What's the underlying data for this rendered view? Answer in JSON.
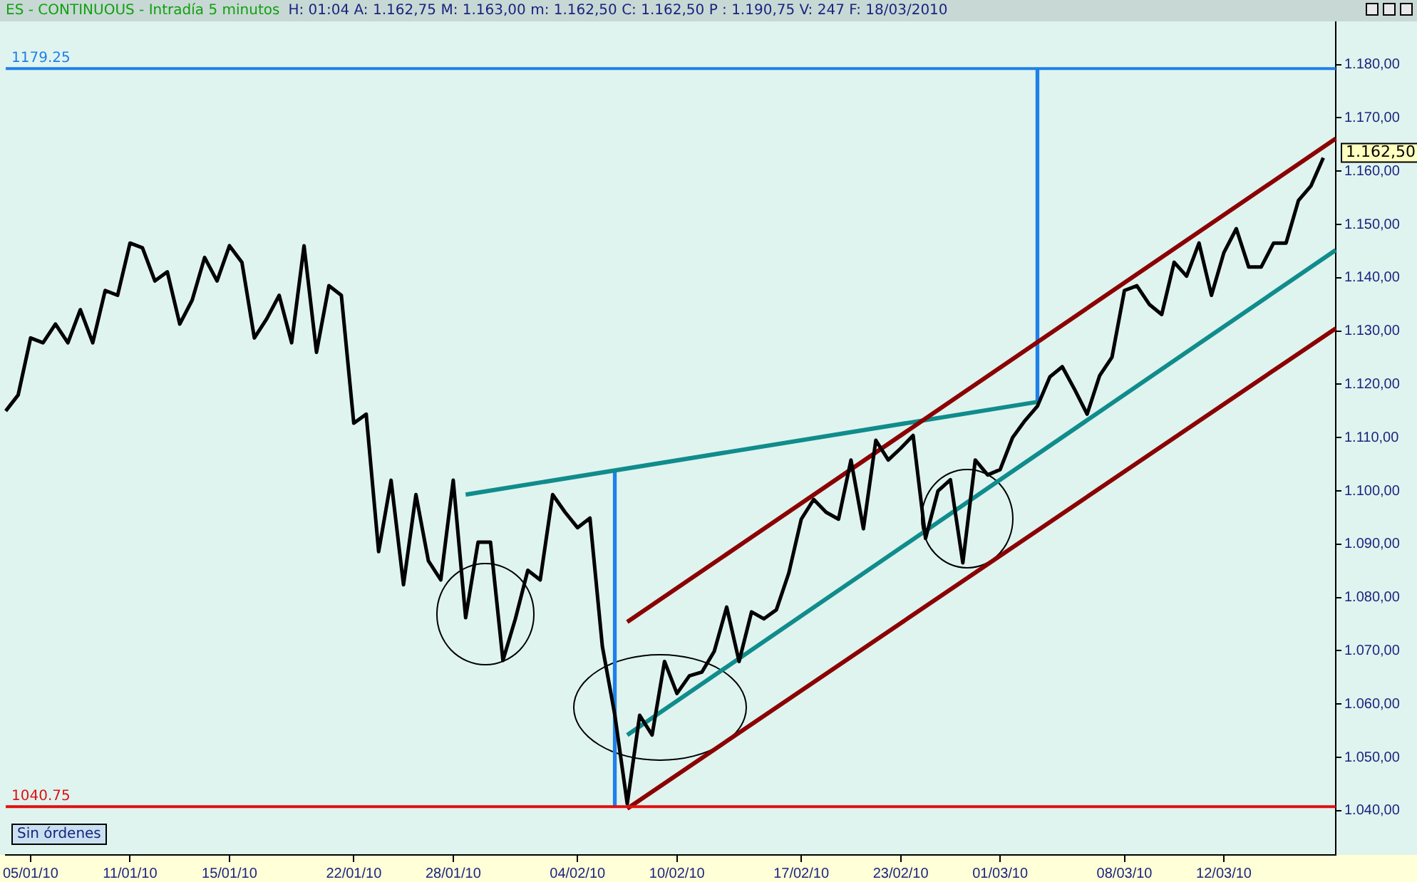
{
  "chart_data": {
    "type": "line",
    "title": "ES - CONTINUOUS - Intradía 5 minutos",
    "subtitle": "H: 01:04  A: 1.162,75  M: 1.163,00  m: 1.162,50  C: 1.162,50  P : 1.190,75  V: 247  F: 18/03/2010",
    "categories": [
      null,
      null,
      "05/01/10",
      null,
      null,
      null,
      null,
      null,
      null,
      null,
      "11/01/10",
      null,
      null,
      null,
      null,
      null,
      null,
      null,
      "15/01/10",
      null,
      null,
      null,
      null,
      null,
      null,
      null,
      null,
      null,
      "22/01/10",
      null,
      null,
      null,
      null,
      null,
      null,
      null,
      "28/01/10",
      null,
      null,
      null,
      null,
      null,
      null,
      null,
      null,
      null,
      "04/02/10",
      null,
      null,
      null,
      null,
      null,
      null,
      null,
      "10/02/10",
      null,
      null,
      null,
      null,
      null,
      null,
      null,
      null,
      null,
      "17/02/10",
      null,
      null,
      null,
      null,
      null,
      null,
      null,
      "23/02/10",
      null,
      null,
      null,
      null,
      null,
      null,
      null,
      "01/03/10",
      null,
      null,
      null,
      null,
      null,
      null,
      null,
      null,
      null,
      "08/03/10",
      null,
      null,
      null,
      null,
      null,
      null,
      null,
      "12/03/10",
      null,
      null,
      null,
      null,
      null,
      null,
      null,
      null,
      null
    ],
    "ylim": [
      1031.7,
      1188.1
    ],
    "yticks": [
      {
        "value": 1040,
        "label": "1.040,00"
      },
      {
        "value": 1050,
        "label": "1.050,00"
      },
      {
        "value": 1060,
        "label": "1.060,00"
      },
      {
        "value": 1070,
        "label": "1.070,00"
      },
      {
        "value": 1080,
        "label": "1.080,00"
      },
      {
        "value": 1090,
        "label": "1.090,00"
      },
      {
        "value": 1100,
        "label": "1.100,00"
      },
      {
        "value": 1110,
        "label": "1.110,00"
      },
      {
        "value": 1120,
        "label": "1.120,00"
      },
      {
        "value": 1130,
        "label": "1.130,00"
      },
      {
        "value": 1140,
        "label": "1.140,00"
      },
      {
        "value": 1150,
        "label": "1.150,00"
      },
      {
        "value": 1160,
        "label": "1.160,00"
      },
      {
        "value": 1170,
        "label": "1.170,00"
      },
      {
        "value": 1180,
        "label": "1.180,00"
      }
    ],
    "series": [
      {
        "color": "#000000",
        "values": [
          1115.0,
          1118.0,
          1128.7,
          1127.8,
          1131.3,
          1127.8,
          1134.0,
          1127.8,
          1137.6,
          1136.7,
          1146.5,
          1145.6,
          1139.4,
          1141.1,
          1131.3,
          1135.8,
          1143.8,
          1139.4,
          1146.0,
          1142.9,
          1128.7,
          1132.3,
          1136.7,
          1127.8,
          1146.0,
          1126.0,
          1138.5,
          1136.7,
          1112.7,
          1114.4,
          1088.6,
          1102.0,
          1082.4,
          1099.3,
          1086.9,
          1083.3,
          1102.0,
          1076.2,
          1090.4,
          1090.4,
          1068.2,
          1076.0,
          1085.1,
          1083.3,
          1099.3,
          1096.0,
          1093.1,
          1094.9,
          1070.8,
          1058.0,
          1041.3,
          1057.9,
          1054.2,
          1068.0,
          1062.0,
          1065.3,
          1066.0,
          1069.9,
          1078.2,
          1068.0,
          1077.3,
          1076.0,
          1077.7,
          1084.6,
          1094.7,
          1098.4,
          1096.0,
          1094.7,
          1105.8,
          1092.9,
          1109.5,
          1105.8,
          1108.0,
          1110.4,
          1091.1,
          1100.0,
          1102.1,
          1086.5,
          1105.8,
          1103.0,
          1104.0,
          1110.0,
          1113.2,
          1115.9,
          1121.4,
          1123.3,
          1119.0,
          1114.4,
          1121.6,
          1125.1,
          1137.6,
          1138.5,
          1135.0,
          1133.1,
          1142.9,
          1140.3,
          1146.5,
          1136.7,
          1144.7,
          1149.2,
          1142.0,
          1142.0,
          1146.5,
          1146.5,
          1154.5,
          1157.2,
          1162.5,
          null
        ]
      },
      {
        "color": "#8b0000",
        "values": [
          null,
          null,
          null,
          null,
          null,
          null,
          null,
          null,
          null,
          null,
          null,
          null,
          null,
          null,
          null,
          null,
          null,
          null,
          null,
          null,
          null,
          null,
          null,
          null,
          null,
          null,
          null,
          null,
          null,
          null,
          null,
          null,
          null,
          null,
          null,
          null,
          null,
          null,
          null,
          null,
          null,
          null,
          null,
          null,
          null,
          null,
          null,
          null,
          null,
          null,
          1075.4,
          null,
          null,
          null,
          null,
          null,
          null,
          null,
          null,
          null,
          null,
          null,
          null,
          null,
          null,
          null,
          null,
          null,
          null,
          null,
          null,
          null,
          null,
          null,
          null,
          null,
          null,
          null,
          null,
          null,
          null,
          null,
          null,
          null,
          null,
          null,
          null,
          null,
          null,
          null,
          null,
          null,
          null,
          null,
          null,
          null,
          null,
          null,
          null,
          null,
          null,
          null,
          null,
          null,
          null,
          null,
          null,
          1166.1
        ]
      },
      {
        "color": "#8b0000",
        "values": [
          null,
          null,
          null,
          null,
          null,
          null,
          null,
          null,
          null,
          null,
          null,
          null,
          null,
          null,
          null,
          null,
          null,
          null,
          null,
          null,
          null,
          null,
          null,
          null,
          null,
          null,
          null,
          null,
          null,
          null,
          null,
          null,
          null,
          null,
          null,
          null,
          null,
          null,
          null,
          null,
          null,
          null,
          null,
          null,
          null,
          null,
          null,
          null,
          null,
          null,
          1040.4,
          null,
          null,
          null,
          null,
          null,
          null,
          null,
          null,
          null,
          null,
          null,
          null,
          null,
          null,
          null,
          null,
          null,
          null,
          null,
          null,
          null,
          null,
          null,
          null,
          null,
          null,
          null,
          null,
          null,
          null,
          null,
          null,
          null,
          null,
          null,
          null,
          null,
          null,
          null,
          null,
          null,
          null,
          null,
          null,
          null,
          null,
          null,
          null,
          null,
          null,
          null,
          null,
          null,
          null,
          null,
          null,
          1130.5
        ]
      },
      {
        "color": "#108c8c",
        "values": [
          null,
          null,
          null,
          null,
          null,
          null,
          null,
          null,
          null,
          null,
          null,
          null,
          null,
          null,
          null,
          null,
          null,
          null,
          null,
          null,
          null,
          null,
          null,
          null,
          null,
          null,
          null,
          null,
          null,
          null,
          null,
          null,
          null,
          null,
          null,
          null,
          null,
          null,
          null,
          null,
          null,
          null,
          null,
          null,
          null,
          null,
          null,
          null,
          null,
          null,
          1054.2,
          null,
          null,
          null,
          null,
          null,
          null,
          null,
          null,
          null,
          null,
          null,
          null,
          null,
          null,
          null,
          null,
          null,
          null,
          null,
          null,
          null,
          null,
          null,
          null,
          null,
          null,
          null,
          null,
          null,
          null,
          null,
          null,
          null,
          null,
          null,
          null,
          null,
          null,
          null,
          null,
          null,
          null,
          null,
          null,
          null,
          null,
          null,
          null,
          null,
          null,
          null,
          null,
          null,
          null,
          null,
          null,
          1145.2
        ]
      },
      {
        "color": "#108c8c",
        "values": [
          null,
          null,
          null,
          null,
          null,
          null,
          null,
          null,
          null,
          null,
          null,
          null,
          null,
          null,
          null,
          null,
          null,
          null,
          null,
          null,
          null,
          null,
          null,
          null,
          null,
          null,
          null,
          null,
          null,
          null,
          null,
          null,
          null,
          null,
          null,
          null,
          null,
          1099.3,
          null,
          null,
          null,
          null,
          null,
          null,
          null,
          null,
          null,
          null,
          null,
          null,
          null,
          null,
          null,
          null,
          null,
          null,
          null,
          null,
          null,
          null,
          null,
          null,
          null,
          null,
          null,
          null,
          null,
          null,
          null,
          null,
          null,
          null,
          null,
          null,
          null,
          null,
          null,
          null,
          null,
          null,
          null,
          null,
          null,
          1116.7,
          null,
          null,
          null,
          null,
          null,
          null,
          null,
          null,
          null,
          null,
          null,
          null,
          null,
          null,
          null,
          null,
          null,
          null,
          null,
          null,
          null,
          null,
          null,
          null
        ]
      },
      {
        "type": "bar",
        "color": "#1e80e8",
        "base": [
          null,
          null,
          null,
          null,
          null,
          null,
          null,
          null,
          null,
          null,
          null,
          null,
          null,
          null,
          null,
          null,
          null,
          null,
          null,
          null,
          null,
          null,
          null,
          null,
          null,
          null,
          null,
          null,
          null,
          null,
          null,
          null,
          null,
          null,
          null,
          null,
          null,
          null,
          null,
          null,
          null,
          null,
          null,
          null,
          null,
          null,
          null,
          null,
          null,
          1040.75,
          null,
          null,
          null,
          null,
          null,
          null,
          null,
          null,
          null,
          null,
          null,
          null,
          null,
          null,
          null,
          null,
          null,
          null,
          null,
          null,
          null,
          null,
          null,
          null,
          null,
          null,
          null,
          null,
          null,
          null,
          null,
          null,
          null,
          1116.7,
          null,
          null,
          null,
          null,
          null,
          null,
          null,
          null,
          null,
          null,
          null,
          null,
          null,
          null,
          null,
          null,
          null,
          null,
          null,
          null,
          null,
          null,
          null,
          null
        ],
        "values": [
          null,
          null,
          null,
          null,
          null,
          null,
          null,
          null,
          null,
          null,
          null,
          null,
          null,
          null,
          null,
          null,
          null,
          null,
          null,
          null,
          null,
          null,
          null,
          null,
          null,
          null,
          null,
          null,
          null,
          null,
          null,
          null,
          null,
          null,
          null,
          null,
          null,
          null,
          null,
          null,
          null,
          null,
          null,
          null,
          null,
          null,
          null,
          null,
          null,
          63,
          null,
          null,
          null,
          null,
          null,
          null,
          null,
          null,
          null,
          null,
          null,
          null,
          null,
          null,
          null,
          null,
          null,
          null,
          null,
          null,
          null,
          null,
          null,
          null,
          null,
          null,
          null,
          null,
          null,
          null,
          null,
          null,
          null,
          62.6,
          null,
          null,
          null,
          null,
          null,
          null,
          null,
          null,
          null,
          null,
          null,
          null,
          null,
          null,
          null,
          null,
          null,
          null,
          null,
          null,
          null,
          null,
          null,
          null
        ]
      }
    ],
    "ref_lines": [
      {
        "axis": "y",
        "value": 1179.25,
        "label": "1179.25",
        "color": "#1e80e8"
      },
      {
        "axis": "y",
        "value": 1040.75,
        "label": "1040.75",
        "color": "#e01010"
      }
    ],
    "annotations": [
      "Sin órdenes",
      "1.162,50"
    ]
  }
}
